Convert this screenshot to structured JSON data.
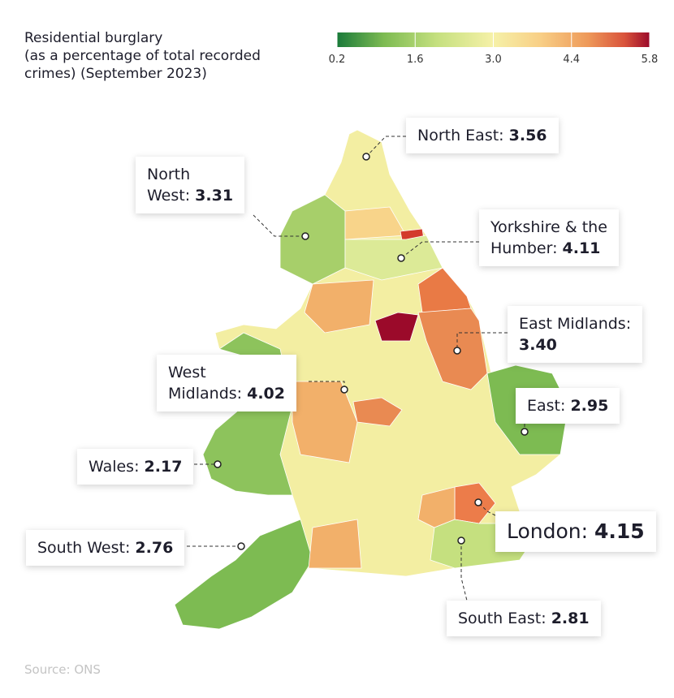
{
  "title_lines": [
    "Residential burglary",
    "(as a percentage of total recorded",
    "crimes) (September 2023)"
  ],
  "colorbar": {
    "lim": [
      0.2,
      5.8
    ],
    "ticks": [
      0.2,
      1.6,
      {
        "value": 3,
        "label": "3.0"
      },
      4.4,
      5.8
    ]
  },
  "regions": [
    {
      "name_lines": [
        "North East:"
      ],
      "value": "3.56"
    },
    {
      "name_lines": [
        "North",
        "West:"
      ],
      "value": "3.31"
    },
    {
      "name_lines": [
        "Yorkshire & the",
        "Humber:"
      ],
      "value": "4.11"
    },
    {
      "name_lines": [
        "East Midlands:"
      ],
      "value": "3.40"
    },
    {
      "name_lines": [
        "West",
        "Midlands:"
      ],
      "value": "4.02"
    },
    {
      "name_lines": [
        "East:"
      ],
      "value": "2.95"
    },
    {
      "name_lines": [
        "Wales:"
      ],
      "value": "2.17"
    },
    {
      "name_lines": [
        "London:"
      ],
      "value": "4.15"
    },
    {
      "name_lines": [
        "South West:"
      ],
      "value": "2.76"
    },
    {
      "name_lines": [
        "South East:"
      ],
      "value": "2.81"
    }
  ],
  "source": "Source: ONS"
}
